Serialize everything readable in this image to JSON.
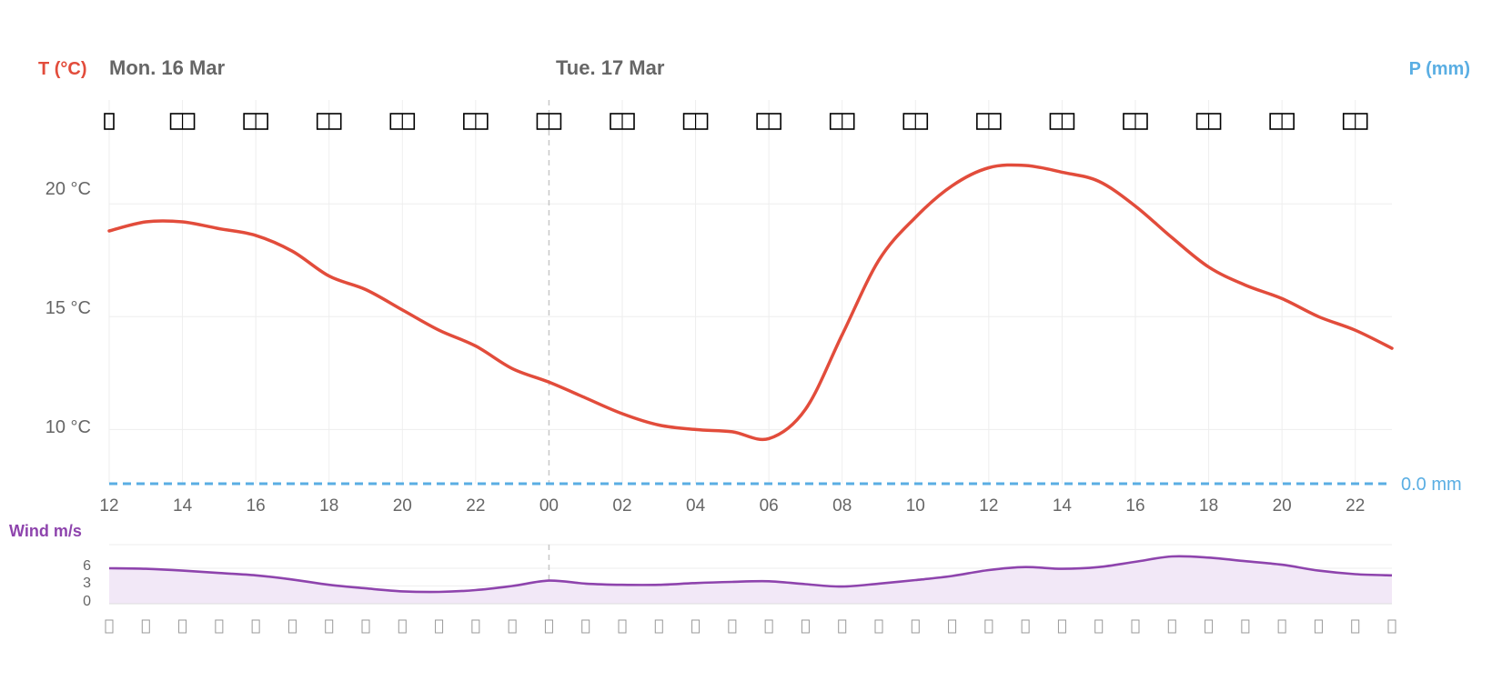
{
  "header": {
    "temp_axis_label": "T (°C)",
    "precip_axis_label": "P (mm)",
    "day1": "Mon. 16 Mar",
    "day2": "Tue. 17 Mar",
    "wind_label": "Wind m/s",
    "precip_value_label": "0.0 mm"
  },
  "colors": {
    "temperature": "#e24c3b",
    "precipitation": "#5aaee3",
    "wind": "#8e44ad",
    "wind_fill": "#f2e8f7",
    "grid": "#eeeeee",
    "midnight_line": "#c8c8c8"
  },
  "chart_data": [
    {
      "type": "line",
      "x": [
        "12",
        "13",
        "14",
        "15",
        "16",
        "17",
        "18",
        "19",
        "20",
        "21",
        "22",
        "23",
        "00",
        "01",
        "02",
        "03",
        "04",
        "05",
        "06",
        "07",
        "08",
        "09",
        "10",
        "11",
        "12",
        "13",
        "14",
        "15",
        "16",
        "17",
        "18",
        "19",
        "20",
        "21",
        "22",
        "23"
      ],
      "x_tick_labels": [
        "12",
        "14",
        "16",
        "18",
        "20",
        "22",
        "00",
        "02",
        "04",
        "06",
        "08",
        "10",
        "12",
        "14",
        "16",
        "18",
        "20",
        "22"
      ],
      "series": [
        {
          "values": [
            18.8,
            19.2,
            19.2,
            18.9,
            18.6,
            17.9,
            16.8,
            16.2,
            15.3,
            14.4,
            13.7,
            12.7,
            12.1,
            11.4,
            10.7,
            10.2,
            10.0,
            9.9,
            9.6,
            10.9,
            14.2,
            17.5,
            19.4,
            20.8,
            21.6,
            21.7,
            21.4,
            21.0,
            19.9,
            18.5,
            17.2,
            16.4,
            15.8,
            15.0,
            14.4,
            13.6
          ]
        },
        {
          "values": [
            0,
            0,
            0,
            0,
            0,
            0,
            0,
            0,
            0,
            0,
            0,
            0,
            0,
            0,
            0,
            0,
            0,
            0,
            0,
            0,
            0,
            0,
            0,
            0,
            0,
            0,
            0,
            0,
            0,
            0,
            0,
            0,
            0,
            0,
            0,
            0
          ]
        }
      ],
      "ylabel": "T (°C)",
      "y2label": "P (mm)",
      "y_ticks": [
        "10 °C",
        "15 °C",
        "20 °C"
      ],
      "y_tick_values": [
        10,
        15,
        20
      ],
      "ylim": [
        7.6,
        24.6
      ],
      "grid": true
    },
    {
      "type": "area",
      "x": [
        "12",
        "13",
        "14",
        "15",
        "16",
        "17",
        "18",
        "19",
        "20",
        "21",
        "22",
        "23",
        "00",
        "01",
        "02",
        "03",
        "04",
        "05",
        "06",
        "07",
        "08",
        "09",
        "10",
        "11",
        "12",
        "13",
        "14",
        "15",
        "16",
        "17",
        "18",
        "19",
        "20",
        "21",
        "22",
        "23"
      ],
      "series": [
        {
          "values": [
            6.0,
            5.9,
            5.6,
            5.2,
            4.8,
            4.1,
            3.2,
            2.6,
            2.1,
            2.0,
            2.3,
            3.0,
            3.9,
            3.4,
            3.2,
            3.2,
            3.5,
            3.7,
            3.8,
            3.3,
            2.9,
            3.4,
            4.0,
            4.7,
            5.7,
            6.2,
            5.9,
            6.2,
            7.1,
            8.0,
            7.8,
            7.2,
            6.6,
            5.6,
            5.0,
            4.8
          ]
        }
      ],
      "ylabel": "Wind m/s",
      "y_ticks": [
        "0",
        "3",
        "6"
      ],
      "y_tick_values": [
        0,
        3,
        6
      ],
      "ylim": [
        0,
        10
      ]
    }
  ]
}
